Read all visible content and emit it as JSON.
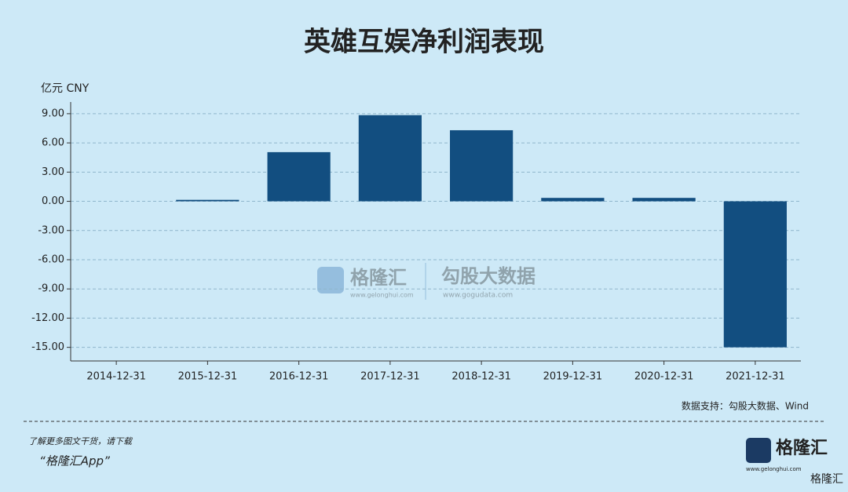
{
  "chart_data": {
    "type": "bar",
    "title": "英雄互娱净利润表现",
    "y_label": "亿元  CNY",
    "categories": [
      "2014-12-31",
      "2015-12-31",
      "2016-12-31",
      "2017-12-31",
      "2018-12-31",
      "2019-12-31",
      "2020-12-31",
      "2021-12-31"
    ],
    "values": [
      0,
      0.15,
      5.05,
      8.85,
      7.3,
      0.35,
      0.35,
      -15.0
    ],
    "color": "#124e80",
    "ylim": [
      -16.4,
      10.2
    ],
    "yticks": [
      {
        "value": 9,
        "label": "9.00"
      },
      {
        "value": 6,
        "label": "6.00"
      },
      {
        "value": 3,
        "label": "3.00"
      },
      {
        "value": 0,
        "label": "0.00"
      },
      {
        "value": -3,
        "label": "-3.00"
      },
      {
        "value": -6,
        "label": "-6.00"
      },
      {
        "value": -9,
        "label": "-9.00"
      },
      {
        "value": -12,
        "label": "-12.00"
      },
      {
        "value": -15,
        "label": "-15.00"
      }
    ],
    "grid": true,
    "source": "数据支持：勾股大数据、Wind"
  },
  "branding": {
    "watermark_name": "格隆汇",
    "watermark_url": "www.gelonghui.com",
    "watermark_partner": "勾股大数据",
    "watermark_partner_url": "www.gogudata.com",
    "footer_line1": "了解更多图文干货，请下载",
    "footer_line2": "“格隆汇App”",
    "logo_name": "格隆汇",
    "logo_url": "www.gelonghui.com",
    "corner_mark": "格隆汇"
  }
}
